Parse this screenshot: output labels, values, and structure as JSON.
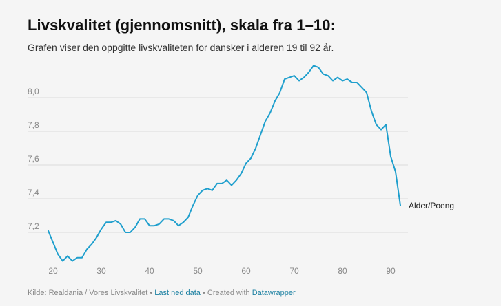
{
  "header": {
    "title": "Livskvalitet (gjennomsnitt), skala fra 1–10:",
    "subtitle": "Grafen viser den oppgitte livskvaliteten for dansker i alderen 19 til 92 år."
  },
  "footer": {
    "source": "Kilde: Realdania / Vores Livskvalitet",
    "sep1": " • ",
    "download": "Last ned data",
    "created": " • Created with ",
    "tool": "Datawrapper"
  },
  "colors": {
    "line": "#1f9fcd",
    "grid": "#dcdcdc",
    "link": "#1d81a2"
  },
  "chart_data": {
    "type": "line",
    "title": "Livskvalitet (gjennomsnitt), skala fra 1–10:",
    "xlabel": "",
    "ylabel": "",
    "series_label": "Alder/Poeng",
    "xlim": [
      18,
      95
    ],
    "ylim": [
      7.02,
      8.27
    ],
    "x_ticks": [
      "20",
      "30",
      "40",
      "50",
      "60",
      "70",
      "80",
      "90"
    ],
    "y_ticks": [
      "7,2",
      "7,4",
      "7,6",
      "7,8",
      "8,0"
    ],
    "series": [
      {
        "name": "Alder/Poeng",
        "x": [
          19,
          20,
          21,
          22,
          23,
          24,
          25,
          26,
          27,
          28,
          29,
          30,
          31,
          32,
          33,
          34,
          35,
          36,
          37,
          38,
          39,
          40,
          41,
          42,
          43,
          44,
          45,
          46,
          47,
          48,
          49,
          50,
          51,
          52,
          53,
          54,
          55,
          56,
          57,
          58,
          59,
          60,
          61,
          62,
          63,
          64,
          65,
          66,
          67,
          68,
          69,
          70,
          71,
          72,
          73,
          74,
          75,
          76,
          77,
          78,
          79,
          80,
          81,
          82,
          83,
          84,
          85,
          86,
          87,
          88,
          89,
          90,
          91,
          92
        ],
        "values": [
          7.21,
          7.14,
          7.07,
          7.03,
          7.06,
          7.03,
          7.05,
          7.05,
          7.1,
          7.13,
          7.17,
          7.22,
          7.26,
          7.26,
          7.27,
          7.25,
          7.2,
          7.2,
          7.23,
          7.28,
          7.28,
          7.24,
          7.24,
          7.25,
          7.28,
          7.28,
          7.27,
          7.24,
          7.26,
          7.29,
          7.36,
          7.42,
          7.45,
          7.46,
          7.45,
          7.49,
          7.49,
          7.51,
          7.48,
          7.51,
          7.55,
          7.61,
          7.64,
          7.7,
          7.78,
          7.86,
          7.91,
          7.98,
          8.03,
          8.11,
          8.12,
          8.13,
          8.1,
          8.12,
          8.15,
          8.19,
          8.18,
          8.14,
          8.13,
          8.1,
          8.12,
          8.1,
          8.11,
          8.09,
          8.09,
          8.06,
          8.03,
          7.92,
          7.84,
          7.81,
          7.84,
          7.65,
          7.56,
          7.36
        ]
      }
    ]
  }
}
